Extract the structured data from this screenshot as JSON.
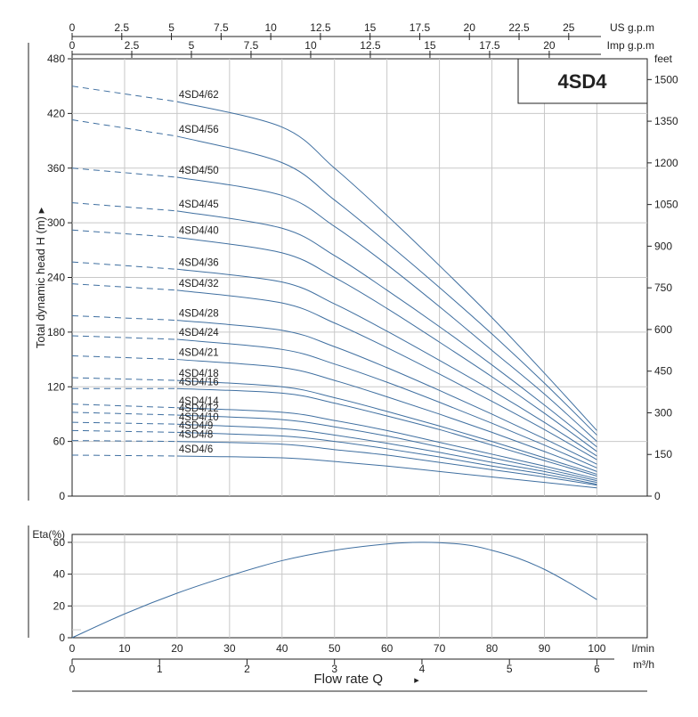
{
  "colors": {
    "curve": "#3f6fa0",
    "grid": "#c8c8c8",
    "axis": "#222222",
    "text": "#222222"
  },
  "chart_data": [
    {
      "type": "line",
      "title": "4SD4",
      "ylabel": "Total dynamic head H (m)",
      "ylabel_arrow": "▸",
      "y_unit_right": "feet",
      "x_unit_top": "US g.p.m",
      "x_unit_second": "Imp g.p.m",
      "x_unit_bottom": "l/min",
      "xlim": [
        0,
        100
      ],
      "ylim": [
        0,
        480
      ],
      "grid": true,
      "x_ticks_lmin": [
        0,
        10,
        20,
        30,
        40,
        50,
        60,
        70,
        80,
        90,
        100
      ],
      "y_ticks_m": [
        0,
        60,
        120,
        180,
        240,
        300,
        360,
        420,
        480
      ],
      "y_ticks_feet": [
        0,
        150,
        300,
        450,
        600,
        750,
        900,
        1050,
        1200,
        1350,
        1500
      ],
      "us_gpm_ticks": [
        "0",
        "2.5",
        "5",
        "7.5",
        "10",
        "12.5",
        "15",
        "17.5",
        "20",
        "22.5",
        "25"
      ],
      "imp_gpm_ticks": [
        "0",
        "2.5",
        "5",
        "7.5",
        "10",
        "12.5",
        "15",
        "17.5",
        "20"
      ],
      "dashed_until_x": 20,
      "x": [
        0,
        20,
        40,
        50,
        60,
        70,
        80,
        90,
        100
      ],
      "series": [
        {
          "name": "4SD4/62",
          "values": [
            450,
            433,
            405,
            360,
            308,
            253,
            196,
            135,
            72
          ]
        },
        {
          "name": "4SD4/56",
          "values": [
            413,
            395,
            366,
            325,
            278,
            229,
            178,
            124,
            67
          ]
        },
        {
          "name": "4SD4/50",
          "values": [
            360,
            350,
            330,
            296,
            254,
            208,
            160,
            112,
            60
          ]
        },
        {
          "name": "4SD4/45",
          "values": [
            322,
            313,
            294,
            264,
            226,
            186,
            144,
            100,
            54
          ]
        },
        {
          "name": "4SD4/40",
          "values": [
            292,
            284,
            267,
            240,
            206,
            169,
            131,
            91,
            49
          ]
        },
        {
          "name": "4SD4/36",
          "values": [
            257,
            249,
            235,
            211,
            181,
            149,
            116,
            81,
            44
          ]
        },
        {
          "name": "4SD4/32",
          "values": [
            233,
            226,
            212,
            190,
            163,
            134,
            104,
            73,
            40
          ]
        },
        {
          "name": "4SD4/28",
          "values": [
            198,
            193,
            182,
            164,
            141,
            116,
            90,
            63,
            35
          ]
        },
        {
          "name": "4SD4/24",
          "values": [
            176,
            172,
            161,
            145,
            125,
            103,
            80,
            56,
            31
          ]
        },
        {
          "name": "4SD4/21",
          "values": [
            154,
            150,
            141,
            127,
            109,
            90,
            70,
            49,
            27
          ]
        },
        {
          "name": "4SD4/18",
          "values": [
            130,
            127,
            120,
            108,
            93,
            77,
            60,
            42,
            24
          ]
        },
        {
          "name": "4SD4/16",
          "values": [
            118,
            118,
            113,
            102,
            88,
            73,
            56,
            39,
            22
          ]
        },
        {
          "name": "4SD4/14",
          "values": [
            101,
            97,
            92,
            83,
            72,
            59,
            46,
            33,
            19
          ]
        },
        {
          "name": "4SD4/12",
          "values": [
            92,
            89,
            84,
            76,
            66,
            54,
            42,
            30,
            17
          ]
        },
        {
          "name": "4SD4/10",
          "values": [
            81,
            79,
            74,
            67,
            58,
            48,
            37,
            27,
            15
          ]
        },
        {
          "name": "4SD4/9",
          "values": [
            72,
            70,
            66,
            60,
            52,
            43,
            33,
            24,
            13
          ]
        },
        {
          "name": "4SD4/8",
          "values": [
            61,
            60,
            57,
            51,
            45,
            37,
            29,
            21,
            12
          ]
        },
        {
          "name": "4SD4/6",
          "values": [
            45,
            44,
            42,
            38,
            33,
            27,
            21,
            15,
            9
          ]
        }
      ]
    },
    {
      "type": "line",
      "ylabel": "Eta(%)",
      "xlabel": "Flow rate Q",
      "xlabel_arrow": "▸",
      "x_unit_bottom": "l/min",
      "x_unit_second": "m³/h",
      "xlim": [
        0,
        100
      ],
      "ylim": [
        0,
        65
      ],
      "grid": true,
      "x_ticks_lmin": [
        0,
        10,
        20,
        30,
        40,
        50,
        60,
        70,
        80,
        90,
        100
      ],
      "y_ticks": [
        0,
        20,
        40,
        60
      ],
      "m3h_ticks": [
        0,
        1,
        2,
        3,
        4,
        5,
        6
      ],
      "x": [
        0,
        10,
        20,
        30,
        40,
        50,
        60,
        67,
        75,
        80,
        85,
        90,
        95,
        100
      ],
      "series": [
        {
          "values": [
            0,
            15,
            28,
            39,
            48.5,
            55,
            59,
            60,
            58.5,
            55,
            50,
            43,
            34,
            24
          ]
        }
      ]
    }
  ]
}
